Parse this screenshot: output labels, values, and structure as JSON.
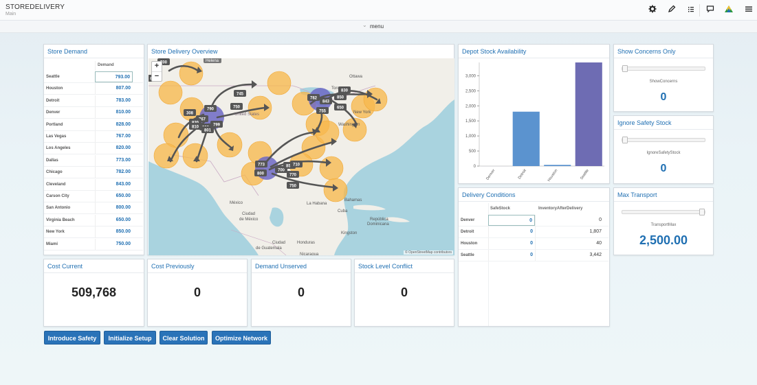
{
  "app": {
    "title": "STOREDELIVERY",
    "subtitle": "Main",
    "menu_label": "menu"
  },
  "toolbar_icons": [
    "gear-icon",
    "pencil-icon",
    "list-icon",
    "chat-icon",
    "logo-icon",
    "hamburger-icon"
  ],
  "store_demand": {
    "title": "Store Demand",
    "column_header": "Demand",
    "rows": [
      {
        "name": "Seattle",
        "value": "793.00"
      },
      {
        "name": "Houston",
        "value": "807.00"
      },
      {
        "name": "Detroit",
        "value": "783.00"
      },
      {
        "name": "Denver",
        "value": "810.00"
      },
      {
        "name": "Portland",
        "value": "828.00"
      },
      {
        "name": "Las Vegas",
        "value": "767.00"
      },
      {
        "name": "Los Angeles",
        "value": "820.00"
      },
      {
        "name": "Dallas",
        "value": "773.00"
      },
      {
        "name": "Chicago",
        "value": "782.00"
      },
      {
        "name": "Cleveland",
        "value": "843.00"
      },
      {
        "name": "Carson City",
        "value": "650.00"
      },
      {
        "name": "San Antonio",
        "value": "800.00"
      },
      {
        "name": "Virginia Beach",
        "value": "650.00"
      },
      {
        "name": "New York",
        "value": "850.00"
      },
      {
        "name": "Miami",
        "value": "750.00"
      }
    ]
  },
  "map": {
    "title": "Store Delivery Overview",
    "attribution": "© OpenStreetMap contributors",
    "zoom_in": "+",
    "zoom_out": "−",
    "place_labels": [
      "Helena",
      "Ottawa",
      "Toronto",
      "United States",
      "Washington",
      "New York",
      "México",
      "Ciudad de México",
      "La Habana",
      "Cuba",
      "Bahamas",
      "República Dominicana",
      "Kingston",
      "Ciudad de Guatemala",
      "Honduras",
      "Nicaragua"
    ],
    "flow_labels": [
      "700",
      "745",
      "750",
      "790",
      "767",
      "308",
      "820",
      "810",
      "800",
      "801",
      "799",
      "782",
      "843",
      "830",
      "850",
      "755",
      "650",
      "773",
      "800",
      "700",
      "859",
      "710",
      "770",
      "750",
      "6"
    ]
  },
  "kpis": [
    {
      "title": "Cost Current",
      "value": "509,768"
    },
    {
      "title": "Cost Previously",
      "value": "0"
    },
    {
      "title": "Demand Unserved",
      "value": "0"
    },
    {
      "title": "Stock Level Conflict",
      "value": "0"
    }
  ],
  "buttons": {
    "introduce_safety": "Introduce Safety",
    "initialize_setup": "Initialize Setup",
    "clear_solution": "Clear Solution",
    "optimize_network": "Optimize Network"
  },
  "depot_stock": {
    "title": "Depot Stock Availability",
    "chart_data": {
      "type": "bar",
      "categories": [
        "Denver",
        "Detroit",
        "Houston",
        "Seattle"
      ],
      "values": [
        0,
        1807,
        40,
        3442
      ],
      "colors": [
        "#5b93cf",
        "#5b93cf",
        "#5b93cf",
        "#6e6cb3"
      ],
      "yticks": [
        "0",
        "500",
        "1,000",
        "1,500",
        "2,000",
        "2,500",
        "3,000"
      ],
      "ylim": [
        0,
        3442
      ],
      "title": "",
      "xlabel": "",
      "ylabel": ""
    }
  },
  "delivery_conditions": {
    "title": "Delivery Conditions",
    "col_safe": "SafeStock",
    "col_inv": "InventoryAfterDelivery",
    "rows": [
      {
        "name": "Denver",
        "safe": "0",
        "inv": "0"
      },
      {
        "name": "Detroit",
        "safe": "0",
        "inv": "1,807"
      },
      {
        "name": "Houston",
        "safe": "0",
        "inv": "40"
      },
      {
        "name": "Seattle",
        "safe": "0",
        "inv": "3,442"
      }
    ]
  },
  "show_concerns": {
    "title": "Show Concerns Only",
    "caption": "ShowConcerns",
    "value": "0",
    "slider_fraction": 0
  },
  "ignore_safety": {
    "title": "Ignore Safety Stock",
    "caption": "IgnoreSafetyStock",
    "value": "0",
    "slider_fraction": 0
  },
  "max_transport": {
    "title": "Max Transport",
    "caption": "TransportMax",
    "value": "2,500.00",
    "slider_fraction": 1
  }
}
